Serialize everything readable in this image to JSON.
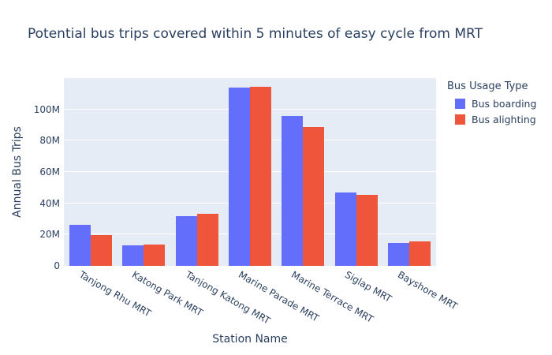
{
  "chart_data": {
    "type": "bar",
    "title": "Potential bus trips covered within 5 minutes of easy cycle from MRT",
    "xlabel": "Station Name",
    "ylabel": "Annual Bus Trips",
    "legend_title": "Bus Usage Type",
    "legend_position": "right-top-outside",
    "grid": true,
    "value_unit": "M",
    "categories": [
      "Tanjong Rhu MRT",
      "Katong Park MRT",
      "Tanjong Katong MRT",
      "Marine Parade MRT",
      "Marine Terrace MRT",
      "Siglap MRT",
      "Bayshore MRT"
    ],
    "series": [
      {
        "name": "Bus boarding",
        "color": "#636EFA",
        "values": [
          26,
          12.9,
          31.7,
          114,
          96,
          46.9,
          14.7
        ]
      },
      {
        "name": "Bus alighting",
        "color": "#EF553B",
        "values": [
          19.9,
          13.4,
          33.2,
          114.3,
          88.5,
          45.4,
          15.4
        ]
      }
    ],
    "ylim": [
      0,
      120
    ],
    "yticks": [
      {
        "value": 0,
        "label": "0"
      },
      {
        "value": 20,
        "label": "20M"
      },
      {
        "value": 40,
        "label": "40M"
      },
      {
        "value": 60,
        "label": "60M"
      },
      {
        "value": 80,
        "label": "80M"
      },
      {
        "value": 100,
        "label": "100M"
      }
    ],
    "colors": {
      "figure_bg": "#FFFFFF",
      "plot_bg": "#E5ECF6",
      "grid": "#FFFFFF",
      "text": "#2A3F5F"
    }
  }
}
